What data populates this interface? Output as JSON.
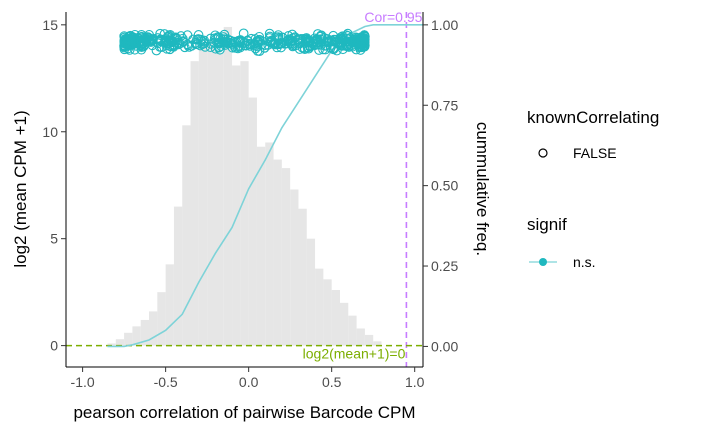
{
  "chart_data": {
    "type": "scatter",
    "xlabel": "pearson correlation of pairwise Barcode CPM",
    "ylabel": "log2 (mean CPM +1)",
    "y2label": "cummulative freq.",
    "xlim": [
      -1.1,
      1.05
    ],
    "ylim": [
      -1,
      15.6
    ],
    "y2lim": [
      -0.064,
      1.04
    ],
    "x_ticks": [
      -1.0,
      -0.5,
      0.0,
      0.5,
      1.0
    ],
    "x_tick_labels": [
      "-1.0",
      "-0.5",
      "0.0",
      "0.5",
      "1.0"
    ],
    "y_ticks": [
      0,
      5,
      10,
      15
    ],
    "y_tick_labels": [
      "0",
      "5",
      "10",
      "15"
    ],
    "y2_ticks": [
      0,
      0.25,
      0.5,
      0.75,
      1.0
    ],
    "y2_tick_labels": [
      "0.00",
      "0.25",
      "0.50",
      "0.75",
      "1.00"
    ],
    "grid": false,
    "legend_position": "right",
    "histogram": {
      "bin_width": 0.05,
      "bin_starts": [
        -0.85,
        -0.8,
        -0.75,
        -0.7,
        -0.65,
        -0.6,
        -0.55,
        -0.5,
        -0.45,
        -0.4,
        -0.35,
        -0.3,
        -0.25,
        -0.2,
        -0.15,
        -0.1,
        -0.05,
        0.0,
        0.05,
        0.1,
        0.15,
        0.2,
        0.25,
        0.3,
        0.35,
        0.4,
        0.45,
        0.5,
        0.55,
        0.6,
        0.65,
        0.7,
        0.75
      ],
      "heights": [
        0.1,
        0.3,
        0.6,
        0.9,
        1.2,
        1.6,
        2.5,
        3.8,
        6.5,
        10.3,
        13.3,
        14.0,
        14.3,
        13.7,
        14.9,
        13.1,
        13.3,
        11.6,
        9.3,
        9.5,
        8.7,
        8.3,
        7.3,
        6.4,
        5.0,
        3.6,
        3.1,
        2.6,
        2.0,
        1.4,
        0.8,
        0.5,
        0.2
      ],
      "color": "#e6e6e6"
    },
    "cumulative": {
      "x": [
        -0.85,
        -0.75,
        -0.7,
        -0.6,
        -0.5,
        -0.4,
        -0.3,
        -0.2,
        -0.1,
        0.0,
        0.1,
        0.2,
        0.3,
        0.4,
        0.5,
        0.6,
        0.7,
        0.75,
        0.8,
        1.05
      ],
      "y": [
        0.0,
        0.0,
        0.005,
        0.02,
        0.05,
        0.1,
        0.2,
        0.29,
        0.37,
        0.49,
        0.58,
        0.68,
        0.76,
        0.84,
        0.92,
        0.97,
        0.995,
        1.0,
        1.0,
        1.0
      ],
      "color": "#7ed3d8"
    },
    "scatter": {
      "x_range": [
        -0.75,
        0.7
      ],
      "y_range": [
        13.8,
        14.8
      ],
      "y_center": 14.2,
      "count": 500,
      "color": "#1fb8bf"
    },
    "reference_lines": [
      {
        "axis": "x",
        "value": 0.95,
        "label": "Cor=0.95",
        "color": "#c77cff"
      },
      {
        "axis": "y",
        "value": 0,
        "label": "log2(mean+1)=0",
        "color": "#7cae00"
      }
    ],
    "legend": [
      {
        "title": "knownCorrelating",
        "entries": [
          {
            "label": "FALSE",
            "symbol": "open-circle"
          }
        ]
      },
      {
        "title": "signif",
        "entries": [
          {
            "label": "n.s.",
            "symbol": "point-line",
            "color": "#1fb8bf"
          }
        ]
      }
    ]
  }
}
